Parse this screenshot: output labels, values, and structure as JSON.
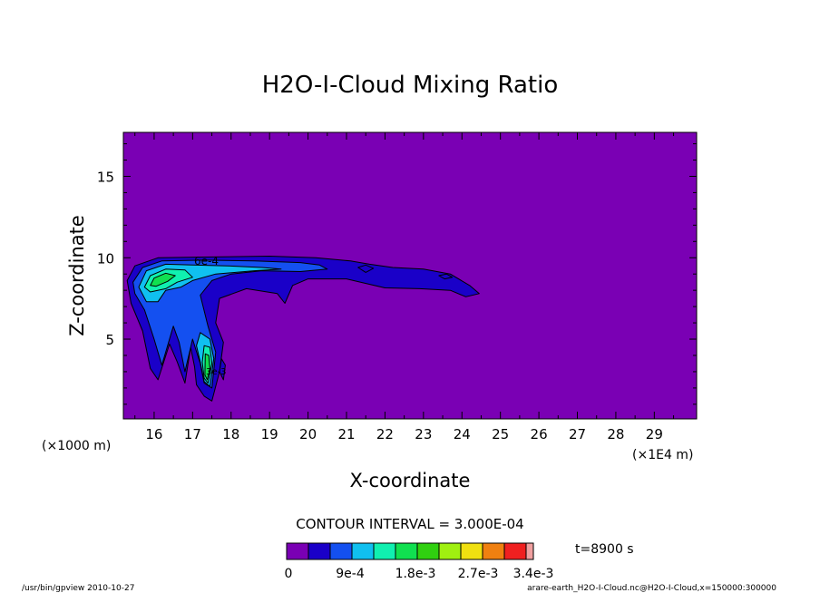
{
  "chart_data": {
    "type": "heatmap",
    "title": "H2O-I-Cloud Mixing Ratio",
    "xlabel": "X-coordinate",
    "ylabel": "Z-coordinate",
    "x_unit_label": "(×1E4 m)",
    "y_unit_label": "(×1000 m)",
    "xlim": [
      15.2,
      30.1
    ],
    "ylim": [
      0.1,
      17.7
    ],
    "x_ticks": [
      16,
      17,
      18,
      19,
      20,
      21,
      22,
      23,
      24,
      25,
      26,
      27,
      28,
      29
    ],
    "y_ticks": [
      5,
      10,
      15
    ],
    "background_color": "#7a00b4",
    "contour_interval": "CONTOUR INTERVAL = 3.000E-04",
    "time_label": "t=8900 s",
    "contour_labels": [
      "6e-4",
      "3e-3"
    ],
    "colorbar": {
      "colors": [
        "#7a00b4",
        "#1a00c8",
        "#1450f0",
        "#10c0f0",
        "#10f0b0",
        "#10e050",
        "#30d010",
        "#a0f010",
        "#f0e010",
        "#f08010",
        "#f02020",
        "#f0a0a0"
      ],
      "labels": [
        "0",
        "9e-4",
        "1.8e-3",
        "2.7e-3",
        "3.4e-3"
      ]
    },
    "regions": [
      {
        "name": "level-1",
        "color": "#1a00c8",
        "points": [
          [
            15.3,
            8.6
          ],
          [
            15.5,
            9.5
          ],
          [
            16.1,
            10.0
          ],
          [
            17.5,
            10.05
          ],
          [
            19.0,
            10.1
          ],
          [
            20.2,
            10.0
          ],
          [
            21.1,
            9.8
          ],
          [
            21.6,
            9.6
          ],
          [
            22.2,
            9.4
          ],
          [
            23.0,
            9.3
          ],
          [
            23.7,
            9.0
          ],
          [
            24.2,
            8.3
          ],
          [
            24.45,
            7.8
          ],
          [
            24.1,
            7.6
          ],
          [
            23.7,
            8.0
          ],
          [
            22.9,
            8.1
          ],
          [
            22.0,
            8.15
          ],
          [
            21.0,
            8.7
          ],
          [
            20.0,
            8.7
          ],
          [
            19.6,
            8.3
          ],
          [
            19.4,
            7.2
          ],
          [
            19.2,
            7.8
          ],
          [
            18.4,
            8.1
          ],
          [
            17.7,
            7.5
          ],
          [
            17.6,
            6.0
          ],
          [
            17.8,
            4.8
          ],
          [
            17.7,
            3.0
          ],
          [
            17.5,
            1.2
          ],
          [
            17.3,
            1.5
          ],
          [
            17.1,
            2.2
          ],
          [
            17.05,
            3.3
          ],
          [
            16.95,
            4.5
          ],
          [
            16.8,
            2.3
          ],
          [
            16.6,
            3.6
          ],
          [
            16.4,
            4.7
          ],
          [
            16.1,
            2.5
          ],
          [
            15.9,
            3.2
          ],
          [
            15.7,
            5.5
          ],
          [
            15.4,
            7.2
          ]
        ]
      },
      {
        "name": "level-2",
        "color": "#1450f0",
        "points": [
          [
            15.45,
            8.5
          ],
          [
            15.7,
            9.4
          ],
          [
            16.2,
            9.8
          ],
          [
            17.3,
            9.85
          ],
          [
            18.6,
            9.8
          ],
          [
            19.8,
            9.7
          ],
          [
            20.3,
            9.55
          ],
          [
            20.5,
            9.3
          ],
          [
            19.8,
            9.15
          ],
          [
            18.8,
            9.2
          ],
          [
            18.0,
            9.0
          ],
          [
            17.5,
            8.6
          ],
          [
            17.2,
            7.7
          ],
          [
            17.4,
            5.8
          ],
          [
            17.6,
            4.2
          ],
          [
            17.5,
            2.0
          ],
          [
            17.3,
            2.3
          ],
          [
            17.2,
            3.5
          ],
          [
            17.0,
            5.0
          ],
          [
            16.8,
            3.0
          ],
          [
            16.65,
            4.8
          ],
          [
            16.5,
            5.8
          ],
          [
            16.2,
            3.4
          ],
          [
            16.0,
            5.0
          ],
          [
            15.75,
            6.8
          ],
          [
            15.5,
            7.8
          ]
        ]
      },
      {
        "name": "level-3",
        "color": "#10c0f0",
        "points": [
          [
            15.6,
            8.2
          ],
          [
            15.8,
            9.2
          ],
          [
            16.3,
            9.6
          ],
          [
            17.0,
            9.55
          ],
          [
            17.9,
            9.5
          ],
          [
            18.8,
            9.4
          ],
          [
            19.3,
            9.3
          ],
          [
            18.6,
            9.2
          ],
          [
            17.6,
            9.0
          ],
          [
            17.0,
            8.6
          ],
          [
            16.7,
            8.2
          ],
          [
            16.3,
            8.0
          ],
          [
            16.1,
            7.3
          ],
          [
            15.8,
            7.3
          ]
        ]
      },
      {
        "name": "level-3b",
        "color": "#10c0f0",
        "points": [
          [
            17.2,
            5.4
          ],
          [
            17.45,
            5.0
          ],
          [
            17.55,
            3.8
          ],
          [
            17.45,
            2.1
          ],
          [
            17.3,
            2.4
          ],
          [
            17.2,
            3.6
          ],
          [
            17.1,
            4.6
          ]
        ]
      },
      {
        "name": "level-4",
        "color": "#10f0b0",
        "points": [
          [
            15.75,
            8.2
          ],
          [
            15.9,
            8.9
          ],
          [
            16.3,
            9.3
          ],
          [
            16.8,
            9.25
          ],
          [
            17.0,
            8.8
          ],
          [
            16.6,
            8.5
          ],
          [
            16.3,
            8.1
          ],
          [
            15.9,
            7.9
          ]
        ]
      },
      {
        "name": "level-4b",
        "color": "#10f0b0",
        "points": [
          [
            17.3,
            4.6
          ],
          [
            17.45,
            4.5
          ],
          [
            17.5,
            3.5
          ],
          [
            17.4,
            2.3
          ],
          [
            17.3,
            2.6
          ],
          [
            17.25,
            3.6
          ]
        ]
      },
      {
        "name": "level-5",
        "color": "#10e050",
        "points": [
          [
            15.9,
            8.3
          ],
          [
            16.0,
            8.75
          ],
          [
            16.3,
            9.05
          ],
          [
            16.55,
            8.9
          ],
          [
            16.35,
            8.55
          ],
          [
            16.05,
            8.25
          ]
        ]
      },
      {
        "name": "level-5b",
        "color": "#10e050",
        "points": [
          [
            17.33,
            4.1
          ],
          [
            17.42,
            4.0
          ],
          [
            17.45,
            3.2
          ],
          [
            17.38,
            2.5
          ],
          [
            17.32,
            2.8
          ]
        ]
      },
      {
        "name": "dark-blob-1",
        "color": "#1a00c8",
        "points": [
          [
            21.3,
            9.4
          ],
          [
            21.5,
            9.55
          ],
          [
            21.7,
            9.35
          ],
          [
            21.5,
            9.1
          ]
        ]
      },
      {
        "name": "dark-blob-2",
        "color": "#1a00c8",
        "points": [
          [
            23.4,
            8.9
          ],
          [
            23.6,
            9.0
          ],
          [
            23.75,
            8.8
          ],
          [
            23.55,
            8.7
          ]
        ]
      },
      {
        "name": "dark-blob-3",
        "color": "#1a00c8",
        "points": [
          [
            17.75,
            3.8
          ],
          [
            17.85,
            3.4
          ],
          [
            17.8,
            2.5
          ],
          [
            17.7,
            3.0
          ]
        ]
      }
    ]
  },
  "footer": {
    "left": "/usr/bin/gpview  2010-10-27",
    "right": "arare-earth_H2O-I-Cloud.nc@H2O-I-Cloud,x=150000:300000"
  }
}
